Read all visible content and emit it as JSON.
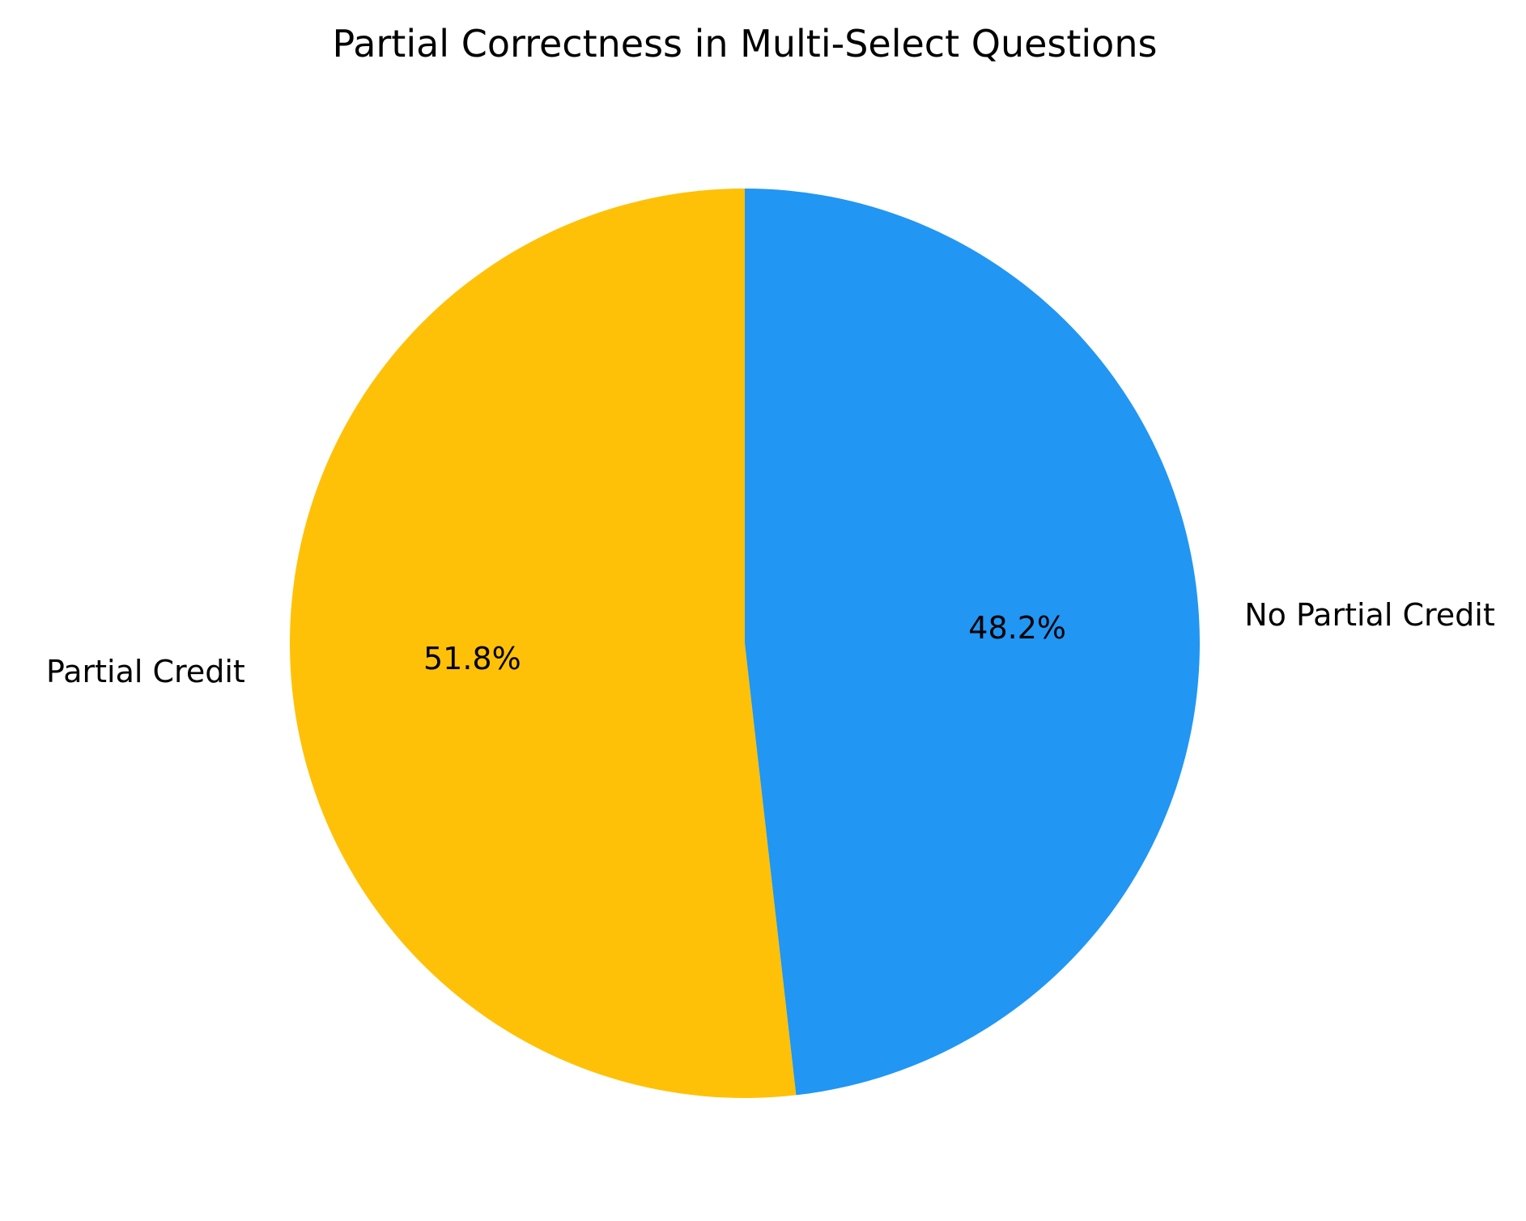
{
  "chart_data": {
    "type": "pie",
    "title": "Partial Correctness in Multi-Select Questions",
    "start_angle_deg": 90,
    "direction": "counterclockwise",
    "slices": [
      {
        "label": "Partial Credit",
        "value": 51.8,
        "pct_label": "51.8%",
        "color": "#FFC107"
      },
      {
        "label": "No Partial Credit",
        "value": 48.2,
        "pct_label": "48.2%",
        "color": "#2196F3"
      }
    ],
    "legend": "none"
  }
}
